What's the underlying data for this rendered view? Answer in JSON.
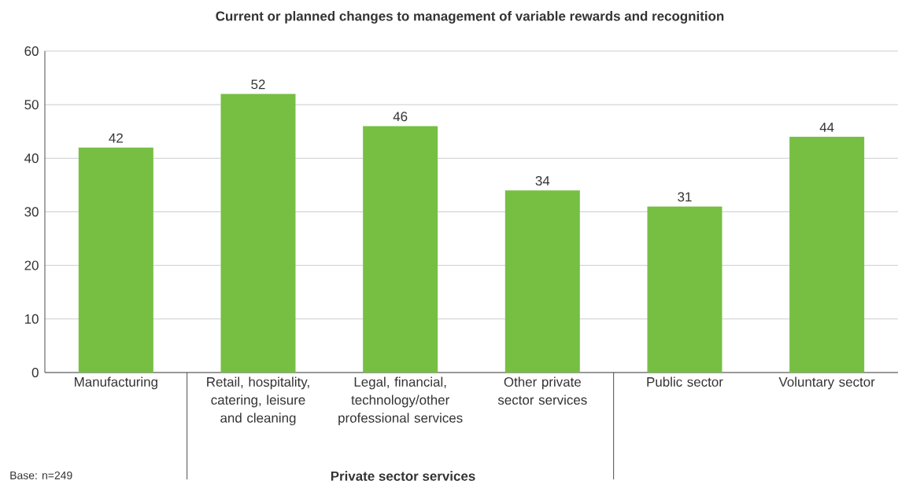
{
  "chart_data": {
    "type": "bar",
    "title": "Current or planned changes to management of variable rewards and recognition",
    "categories": [
      "Manufacturing",
      "Retail, hospitality, catering, leisure and cleaning",
      "Legal, financial, technology/other professional services",
      "Other private sector services",
      "Public sector",
      "Voluntary sector"
    ],
    "values": [
      42,
      52,
      46,
      34,
      31,
      44
    ],
    "color": "#77bf43",
    "ylim": [
      0,
      60
    ],
    "yticks": [
      0,
      10,
      20,
      30,
      40,
      50,
      60
    ],
    "grid": "y",
    "data_labels": true,
    "annotations": [
      "Base: n=249",
      "Private sector services"
    ]
  }
}
